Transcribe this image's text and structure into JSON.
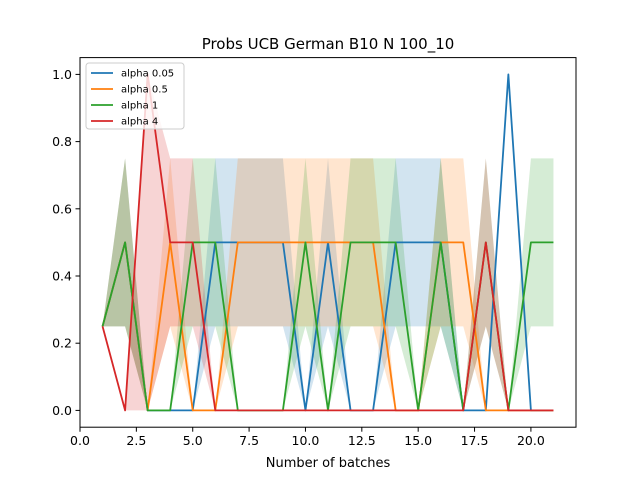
{
  "chart_data": {
    "type": "line",
    "title": "Probs UCB German B10 N 100_10",
    "xlabel": "Number of batches",
    "ylabel": "",
    "xlim": [
      0.0,
      22.0
    ],
    "ylim": [
      -0.05,
      1.05
    ],
    "x": [
      1,
      2,
      3,
      4,
      5,
      6,
      7,
      8,
      9,
      10,
      11,
      12,
      13,
      14,
      15,
      16,
      17,
      18,
      19,
      20,
      21
    ],
    "xticks": [
      0.0,
      2.5,
      5.0,
      7.5,
      10.0,
      12.5,
      15.0,
      17.5,
      20.0
    ],
    "xtick_labels": [
      "0.0",
      "2.5",
      "5.0",
      "7.5",
      "10.0",
      "12.5",
      "15.0",
      "17.5",
      "20.0"
    ],
    "yticks": [
      0.0,
      0.2,
      0.4,
      0.6,
      0.8,
      1.0
    ],
    "ytick_labels": [
      "0.0",
      "0.2",
      "0.4",
      "0.6",
      "0.8",
      "1.0"
    ],
    "grid": false,
    "legend_position": "top-left",
    "series": [
      {
        "name": "alpha 0.05",
        "color": "#1f77b4",
        "values": [
          0.25,
          0.5,
          0.0,
          0.0,
          0.0,
          0.5,
          0.5,
          0.5,
          0.5,
          0.0,
          0.5,
          0.0,
          0.0,
          0.5,
          0.5,
          0.5,
          0.0,
          0.0,
          1.0,
          0.0,
          0.0
        ],
        "band_lower": [
          0.25,
          0.25,
          0.0,
          0.0,
          0.0,
          0.25,
          0.25,
          0.25,
          0.25,
          0.0,
          0.25,
          0.0,
          0.0,
          0.25,
          0.25,
          0.25,
          0.0,
          0.0,
          0.0,
          0.0,
          0.0
        ],
        "band_upper": [
          0.25,
          0.75,
          0.0,
          0.0,
          0.0,
          0.75,
          0.75,
          0.75,
          0.75,
          0.0,
          0.75,
          0.0,
          0.0,
          0.75,
          0.75,
          0.75,
          0.0,
          0.0,
          0.0,
          0.0,
          0.0
        ]
      },
      {
        "name": "alpha 0.5",
        "color": "#ff7f0e",
        "values": [
          0.25,
          0.5,
          0.0,
          0.5,
          0.0,
          0.0,
          0.5,
          0.5,
          0.5,
          0.5,
          0.5,
          0.5,
          0.5,
          0.0,
          0.0,
          0.5,
          0.5,
          0.0,
          0.0,
          0.0,
          0.0
        ],
        "band_lower": [
          0.25,
          0.25,
          0.0,
          0.25,
          0.0,
          0.0,
          0.25,
          0.25,
          0.25,
          0.25,
          0.25,
          0.25,
          0.25,
          0.0,
          0.0,
          0.25,
          0.25,
          0.0,
          0.0,
          0.0,
          0.0
        ],
        "band_upper": [
          0.25,
          0.75,
          0.0,
          0.75,
          0.0,
          0.0,
          0.75,
          0.75,
          0.75,
          0.75,
          0.75,
          0.75,
          0.75,
          0.0,
          0.0,
          0.75,
          0.75,
          0.0,
          0.0,
          0.0,
          0.0
        ]
      },
      {
        "name": "alpha 1",
        "color": "#2ca02c",
        "values": [
          0.25,
          0.5,
          0.0,
          0.0,
          0.5,
          0.5,
          0.0,
          0.0,
          0.0,
          0.5,
          0.0,
          0.5,
          0.5,
          0.5,
          0.0,
          0.5,
          0.0,
          0.5,
          0.0,
          0.5,
          0.5
        ],
        "band_lower": [
          0.25,
          0.25,
          0.0,
          0.0,
          0.25,
          0.25,
          0.0,
          0.0,
          0.0,
          0.25,
          0.0,
          0.25,
          0.25,
          0.25,
          0.0,
          0.25,
          0.0,
          0.25,
          0.0,
          0.25,
          0.25
        ],
        "band_upper": [
          0.25,
          0.75,
          0.0,
          0.0,
          0.75,
          0.75,
          0.0,
          0.0,
          0.0,
          0.75,
          0.0,
          0.75,
          0.75,
          0.75,
          0.0,
          0.75,
          0.0,
          0.75,
          0.0,
          0.75,
          0.75
        ]
      },
      {
        "name": "alpha 4",
        "color": "#d62728",
        "values": [
          0.25,
          0.0,
          1.0,
          0.5,
          0.5,
          0.0,
          0.0,
          0.0,
          0.0,
          0.0,
          0.0,
          0.0,
          0.0,
          0.0,
          0.0,
          0.0,
          0.0,
          0.5,
          0.0,
          0.0,
          0.0
        ],
        "band_lower": [
          0.25,
          0.0,
          0.0,
          0.25,
          0.25,
          0.0,
          0.0,
          0.0,
          0.0,
          0.0,
          0.0,
          0.0,
          0.0,
          0.0,
          0.0,
          0.0,
          0.0,
          0.25,
          0.0,
          0.0,
          0.0
        ],
        "band_upper": [
          0.25,
          0.0,
          1.0,
          0.75,
          0.75,
          0.0,
          0.0,
          0.0,
          0.0,
          0.0,
          0.0,
          0.0,
          0.0,
          0.0,
          0.0,
          0.0,
          0.0,
          0.75,
          0.0,
          0.0,
          0.0
        ]
      }
    ]
  }
}
